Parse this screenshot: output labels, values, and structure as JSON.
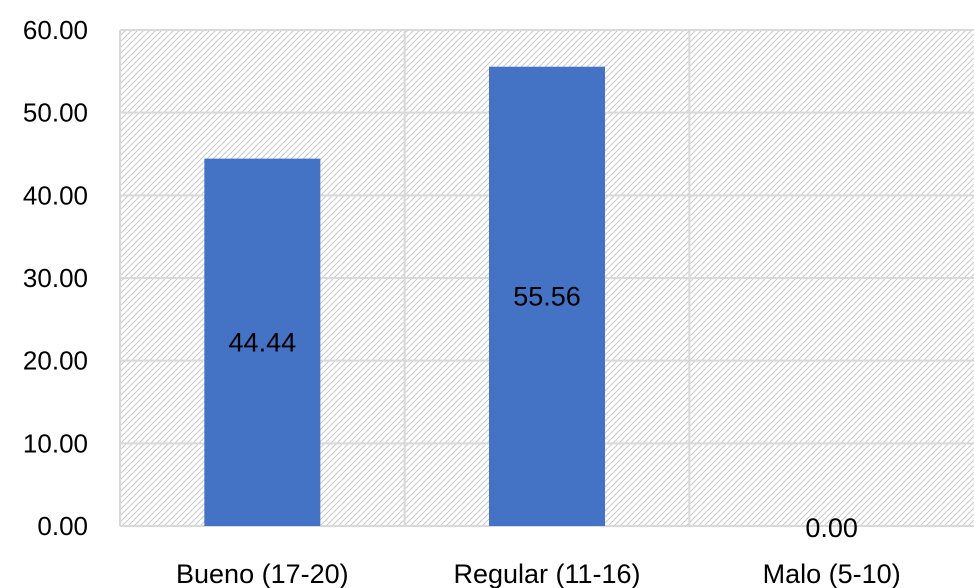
{
  "chart_data": {
    "type": "bar",
    "categories": [
      "Bueno (17-20)",
      "Regular (11-16)",
      "Malo (5-10)"
    ],
    "values": [
      44.44,
      55.56,
      0.0
    ],
    "data_labels": [
      "44.44",
      "55.56",
      "0.00"
    ],
    "yticks": [
      "0.00",
      "10.00",
      "20.00",
      "30.00",
      "40.00",
      "50.00",
      "60.00"
    ],
    "ylim": [
      0,
      60
    ],
    "grid": true,
    "bar_color": "#4472C4",
    "gridline_color": "#d9d9d9",
    "hatch_color": "#c8c8c8"
  }
}
